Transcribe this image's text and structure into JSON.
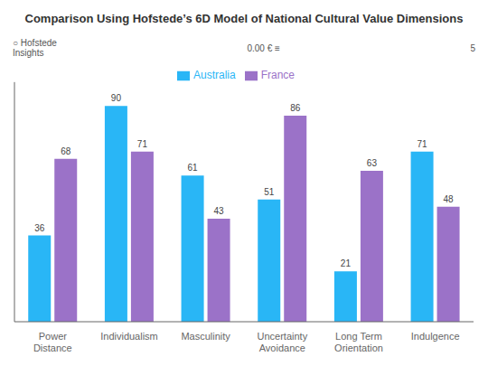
{
  "chart_data": {
    "type": "bar",
    "title": "Comparison Using Hofstede’s 6D Model of National Cultural Value Dimensions",
    "annotations": [
      "○ Hofstede\nInsights",
      "0.00 € ≡",
      "5"
    ],
    "categories": [
      "Power\nDistance",
      "Individualism",
      "Masculinity",
      "Uncertainty\nAvoidance",
      "Long Term\nOrientation",
      "Indulgence"
    ],
    "series": [
      {
        "name": "Australia",
        "color": "#29B6F6",
        "values": [
          36,
          90,
          61,
          51,
          21,
          71
        ]
      },
      {
        "name": "France",
        "color": "#9B72C8",
        "values": [
          68,
          71,
          43,
          86,
          63,
          48
        ]
      }
    ],
    "ylim": [
      0,
      100
    ],
    "legend": "top",
    "data_labels": true,
    "tick_labels": "x",
    "grid": false
  }
}
